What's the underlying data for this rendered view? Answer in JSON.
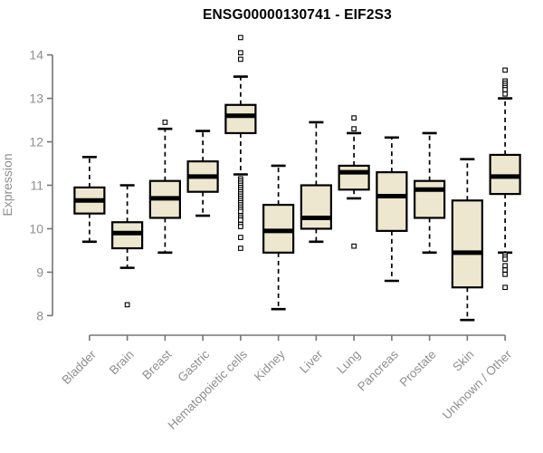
{
  "chart_data": {
    "type": "boxplot",
    "title": "ENSG00000130741 - EIF2S3",
    "ylabel": "Expression",
    "xlabel": "",
    "ylim": [
      7.57,
      14.43
    ],
    "yticks": [
      8,
      9,
      10,
      11,
      12,
      13,
      14
    ],
    "grid": false,
    "legend": "none",
    "categories": [
      "Bladder",
      "Brain",
      "Breast",
      "Gastric",
      "Hematopoietic cells",
      "Kidney",
      "Liver",
      "Lung",
      "Pancreas",
      "Prostate",
      "Skin",
      "Unknown / Other"
    ],
    "boxes": [
      {
        "category": "Bladder",
        "whisker_low": 9.7,
        "q1": 10.35,
        "median": 10.65,
        "q3": 10.95,
        "whisker_high": 11.65,
        "outliers": []
      },
      {
        "category": "Brain",
        "whisker_low": 9.1,
        "q1": 9.55,
        "median": 9.9,
        "q3": 10.15,
        "whisker_high": 11.0,
        "outliers": [
          8.25
        ]
      },
      {
        "category": "Breast",
        "whisker_low": 9.45,
        "q1": 10.25,
        "median": 10.7,
        "q3": 11.1,
        "whisker_high": 12.3,
        "outliers": [
          12.45
        ]
      },
      {
        "category": "Gastric",
        "whisker_low": 10.3,
        "q1": 10.85,
        "median": 11.2,
        "q3": 11.55,
        "whisker_high": 12.25,
        "outliers": []
      },
      {
        "category": "Hematopoietic cells",
        "whisker_low": 11.25,
        "q1": 12.2,
        "median": 12.6,
        "q3": 12.85,
        "whisker_high": 13.5,
        "outliers": [
          14.4,
          14.05,
          13.9,
          11.15,
          11.1,
          11.05,
          11.0,
          10.95,
          10.9,
          10.85,
          10.8,
          10.75,
          10.7,
          10.65,
          10.6,
          10.55,
          10.5,
          10.45,
          10.4,
          10.3,
          10.25,
          10.2,
          10.1,
          10.05,
          9.8,
          9.55
        ]
      },
      {
        "category": "Kidney",
        "whisker_low": 8.15,
        "q1": 9.45,
        "median": 9.95,
        "q3": 10.55,
        "whisker_high": 11.45,
        "outliers": []
      },
      {
        "category": "Liver",
        "whisker_low": 9.7,
        "q1": 10.0,
        "median": 10.25,
        "q3": 11.0,
        "whisker_high": 12.45,
        "outliers": []
      },
      {
        "category": "Lung",
        "whisker_low": 10.7,
        "q1": 10.9,
        "median": 11.3,
        "q3": 11.45,
        "whisker_high": 12.2,
        "outliers": [
          12.55,
          12.3,
          9.6
        ]
      },
      {
        "category": "Pancreas",
        "whisker_low": 8.8,
        "q1": 9.95,
        "median": 10.75,
        "q3": 11.3,
        "whisker_high": 12.1,
        "outliers": []
      },
      {
        "category": "Prostate",
        "whisker_low": 9.45,
        "q1": 10.25,
        "median": 10.9,
        "q3": 11.1,
        "whisker_high": 12.2,
        "outliers": []
      },
      {
        "category": "Skin",
        "whisker_low": 7.9,
        "q1": 8.65,
        "median": 9.45,
        "q3": 10.65,
        "whisker_high": 11.6,
        "outliers": []
      },
      {
        "category": "Unknown / Other",
        "whisker_low": 9.45,
        "q1": 10.8,
        "median": 11.2,
        "q3": 11.7,
        "whisker_high": 13.0,
        "outliers": [
          13.65,
          13.4,
          13.35,
          13.3,
          13.25,
          13.2,
          13.1,
          9.4,
          9.35,
          9.3,
          9.15,
          9.05,
          8.95,
          8.65
        ]
      }
    ],
    "colors": {
      "box_fill": "#EDE7CF",
      "box_border": "#000000",
      "median": "#000000",
      "whisker": "#000000",
      "outlier_stroke": "#000000",
      "outlier_fill": "#ffffff",
      "axis": "#757575",
      "tick_text": "#8f8f8f",
      "title_text": "#000000",
      "background": "#ffffff"
    }
  }
}
